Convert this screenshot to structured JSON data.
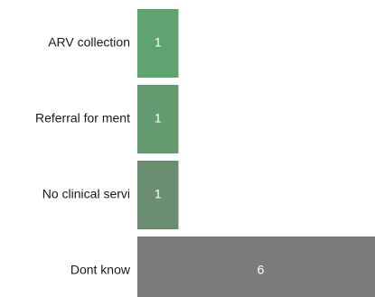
{
  "chart_data": {
    "type": "bar",
    "orientation": "horizontal",
    "categories": [
      "ARV collection",
      "Referral for ment",
      "No clinical servi",
      "Dont know"
    ],
    "values": [
      1,
      1,
      1,
      6
    ],
    "data_labels": [
      "1",
      "1",
      "1",
      "6"
    ],
    "colors": [
      "#5fa371",
      "#649a70",
      "#6b8d70",
      "#7b7b7b"
    ],
    "title": "",
    "xlabel": "",
    "ylabel": "",
    "grid": false,
    "legend": "none"
  }
}
